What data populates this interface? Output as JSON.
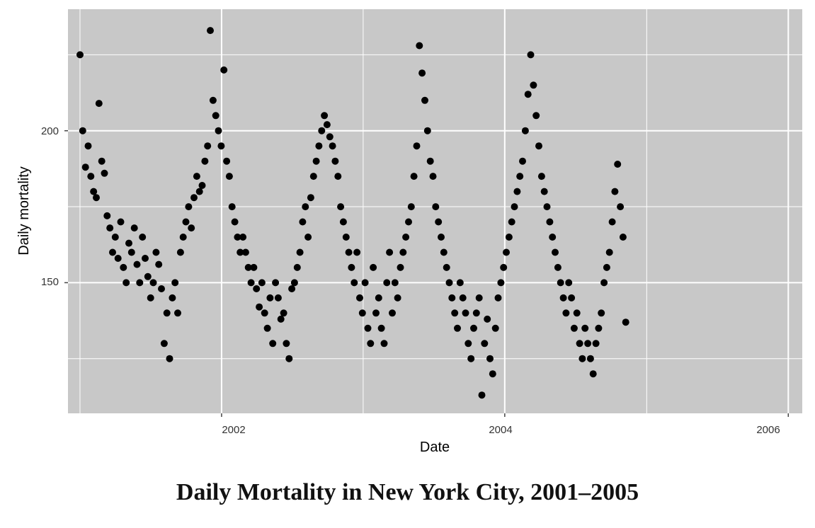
{
  "caption": "Daily Mortality in New York City, 2001–2005",
  "chart_data": {
    "type": "scatter",
    "xlabel": "Date",
    "ylabel": "Daily mortality",
    "x_tick_labels": [
      "2002",
      "2004",
      "2006"
    ],
    "y_tick_labels": [
      "150",
      "200"
    ],
    "xlim": [
      "2000-12-01",
      "2006-02-06"
    ],
    "ylim": [
      107,
      240
    ],
    "grid": true,
    "colors": {
      "panel": "#c8c8c8",
      "grid": "#ffffff",
      "point": "#000000"
    },
    "points_description": "One point per day from 2001-01-01 to 2005-12-31",
    "series": [
      {
        "x_start": "2001-01-01",
        "x_step_days": 7,
        "values": [
          225,
          200,
          188,
          195,
          185,
          180,
          178,
          209,
          190,
          186,
          172,
          168,
          160,
          165,
          158,
          170,
          155,
          150,
          163,
          160,
          168,
          156,
          150,
          165,
          158,
          152,
          145,
          150,
          160,
          156,
          148,
          130,
          140,
          125,
          145,
          150,
          140,
          160,
          165,
          170,
          175,
          168,
          178,
          185,
          180,
          182,
          190,
          195,
          233,
          210,
          205,
          200,
          195,
          220,
          190,
          185,
          175,
          170,
          165,
          160,
          165,
          160,
          155,
          150,
          155,
          148,
          142,
          150,
          140,
          135,
          145,
          130,
          150,
          145,
          138,
          140,
          130,
          125,
          148,
          150,
          155,
          160,
          170,
          175,
          165,
          178,
          185,
          190,
          195,
          200,
          205,
          202,
          198,
          195,
          190,
          185,
          175,
          170,
          165,
          160,
          155,
          150,
          160,
          145,
          140,
          150,
          135,
          130,
          155,
          140,
          145,
          135,
          130,
          150,
          160,
          140,
          150,
          145,
          155,
          160,
          165,
          170,
          175,
          185,
          195,
          228,
          219,
          210,
          200,
          190,
          185,
          175,
          170,
          165,
          160,
          155,
          150,
          145,
          140,
          135,
          150,
          145,
          140,
          130,
          125,
          135,
          140,
          145,
          113,
          130,
          138,
          125,
          120,
          135,
          145,
          150,
          155,
          160,
          165,
          170,
          175,
          180,
          185,
          190,
          200,
          212,
          225,
          215,
          205,
          195,
          185,
          180,
          175,
          170,
          165,
          160,
          155,
          150,
          145,
          140,
          150,
          145,
          135,
          140,
          130,
          125,
          135,
          130,
          125,
          120,
          130,
          135,
          140,
          150,
          155,
          160,
          170,
          180,
          189,
          175,
          165,
          137
        ]
      }
    ]
  }
}
